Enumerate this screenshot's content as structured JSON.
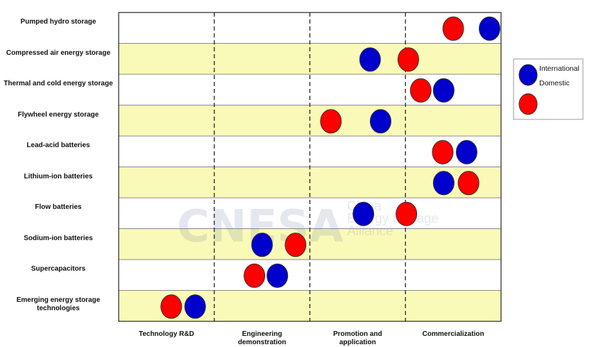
{
  "chart_data": {
    "type": "scatter",
    "categories": [
      "Pumped hydro storage",
      "Compressed air energy storage",
      "Thermal and cold energy storage",
      "Flywheel energy storage",
      "Lead-acid batteries",
      "Lithium-ion batteries",
      "Flow batteries",
      "Sodium-ion batteries",
      "Supercapacitors",
      "Emerging energy storage technologies"
    ],
    "stages": [
      "Technology R&D",
      "Engineering demonstration",
      "Promotion and application",
      "Commercialization"
    ],
    "xlim": [
      0,
      4
    ],
    "series": [
      {
        "name": "International",
        "color": "#0000cc",
        "values": [
          3.88,
          2.63,
          3.4,
          2.74,
          3.64,
          3.4,
          2.56,
          1.5,
          1.66,
          0.8
        ]
      },
      {
        "name": "Domestic",
        "color": "#ff0000",
        "values": [
          3.5,
          3.03,
          3.16,
          2.22,
          3.39,
          3.66,
          3.01,
          1.85,
          1.42,
          0.55
        ]
      }
    ],
    "watermark": {
      "logo": "CNESA",
      "lines": [
        "China",
        "Energy Storage",
        "Alliance"
      ]
    }
  }
}
